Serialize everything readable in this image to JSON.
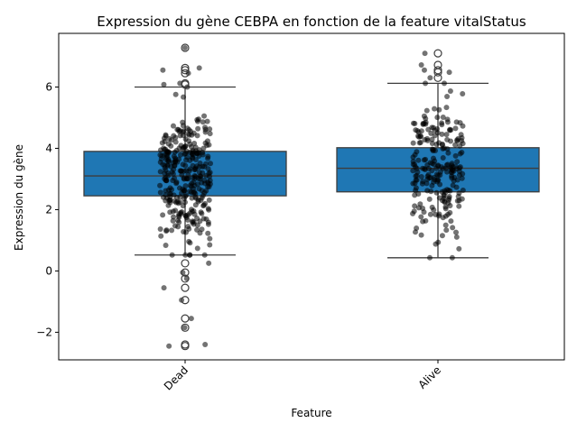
{
  "chart_data": {
    "type": "box",
    "title": "Expression du gène CEBPA en fonction de la feature vitalStatus",
    "xlabel": "Feature",
    "ylabel": "Expression du gène",
    "ylim": [
      -2.9,
      7.75
    ],
    "yticks": [
      -2,
      0,
      2,
      4,
      6
    ],
    "categories": [
      "Dead",
      "Alive"
    ],
    "box_color": "#1f77b4",
    "point_color": "#000000",
    "boxes": [
      {
        "name": "Dead",
        "whisker_low": 0.52,
        "q1": 2.45,
        "median": 3.1,
        "q3": 3.9,
        "whisker_high": 6.0,
        "outliers": [
          7.28,
          6.62,
          6.55,
          6.45,
          6.12,
          6.08,
          0.25,
          -0.05,
          -0.25,
          -0.55,
          -0.95,
          -1.55,
          -1.85,
          -2.4,
          -2.45
        ],
        "n_points": 330
      },
      {
        "name": "Alive",
        "whisker_low": 0.43,
        "q1": 2.58,
        "median": 3.35,
        "q3": 4.02,
        "whisker_high": 6.12,
        "outliers": [
          7.1,
          6.72,
          6.55,
          6.48,
          6.3
        ],
        "n_points": 240
      }
    ]
  }
}
